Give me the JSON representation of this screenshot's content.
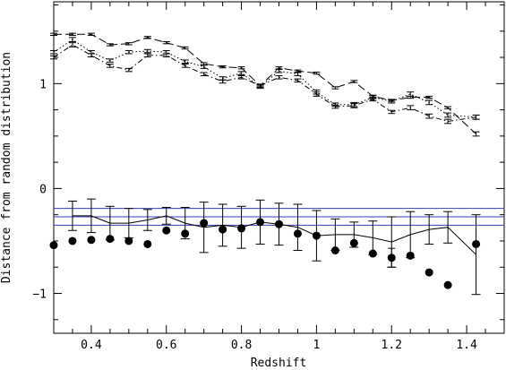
{
  "chart_data": {
    "type": "line",
    "title": "",
    "xlabel": "Redshift",
    "ylabel": "Distance from random distribution",
    "xlim": [
      0.3,
      1.5
    ],
    "ylim": [
      -1.38,
      1.78
    ],
    "xticks": [
      0.4,
      0.6,
      0.8,
      1,
      1.2,
      1.4
    ],
    "xtick_labels": [
      "0.4",
      "0.6",
      "0.8",
      "1",
      "1.2",
      "1.4"
    ],
    "yticks": [
      -1,
      0,
      1
    ],
    "ytick_labels": [
      "−1",
      "0",
      "1"
    ],
    "grid": false,
    "legend": "none",
    "horizontal_lines": {
      "color": "#3b3bb8",
      "values": [
        -0.19,
        -0.27,
        -0.35
      ]
    },
    "series": [
      {
        "style": "dashed",
        "x": [
          0.3,
          0.35,
          0.4,
          0.45,
          0.5,
          0.55,
          0.6,
          0.65,
          0.7,
          0.75,
          0.8,
          0.85,
          0.9,
          0.95,
          1.0,
          1.05,
          1.1,
          1.15,
          1.2,
          1.25,
          1.3,
          1.35,
          1.425
        ],
        "y": [
          1.47,
          1.47,
          1.47,
          1.37,
          1.38,
          1.44,
          1.39,
          1.34,
          1.19,
          1.16,
          1.15,
          0.98,
          1.15,
          1.12,
          1.1,
          0.96,
          1.02,
          0.88,
          0.84,
          0.87,
          0.87,
          0.77,
          0.52
        ],
        "err": [
          0.01,
          0.01,
          0.01,
          0.01,
          0.01,
          0.01,
          0.01,
          0.01,
          0.01,
          0.01,
          0.01,
          0.01,
          0.01,
          0.01,
          0.01,
          0.01,
          0.01,
          0.01,
          0.01,
          0.01,
          0.01,
          0.01,
          0.02
        ]
      },
      {
        "style": "dotted",
        "x": [
          0.3,
          0.35,
          0.4,
          0.45,
          0.5,
          0.55,
          0.6,
          0.65,
          0.7,
          0.75,
          0.8,
          0.85,
          0.9,
          0.95,
          1.0,
          1.05,
          1.1,
          1.15,
          1.2,
          1.25,
          1.3,
          1.35,
          1.425
        ],
        "y": [
          1.3,
          1.42,
          1.3,
          1.22,
          1.3,
          1.31,
          1.3,
          1.21,
          1.16,
          1.05,
          1.1,
          0.97,
          1.12,
          1.09,
          0.92,
          0.8,
          0.8,
          0.87,
          0.83,
          0.9,
          0.82,
          0.7,
          0.68
        ],
        "err": [
          0.015,
          0.02,
          0.015,
          0.015,
          0.015,
          0.015,
          0.015,
          0.015,
          0.015,
          0.015,
          0.015,
          0.015,
          0.015,
          0.015,
          0.02,
          0.015,
          0.02,
          0.015,
          0.015,
          0.02,
          0.02,
          0.02,
          0.02
        ]
      },
      {
        "style": "dash-dot",
        "x": [
          0.3,
          0.35,
          0.4,
          0.45,
          0.5,
          0.55,
          0.6,
          0.65,
          0.7,
          0.75,
          0.8,
          0.85,
          0.9,
          0.95,
          1.0,
          1.05,
          1.1,
          1.15,
          1.2,
          1.25,
          1.3,
          1.35,
          1.425
        ],
        "y": [
          1.25,
          1.37,
          1.27,
          1.17,
          1.13,
          1.27,
          1.27,
          1.17,
          1.09,
          1.02,
          1.06,
          0.98,
          1.06,
          1.03,
          0.9,
          0.78,
          0.79,
          0.85,
          0.73,
          0.77,
          0.69,
          0.64,
          0.68
        ],
        "err": [
          0.015,
          0.02,
          0.015,
          0.015,
          0.015,
          0.015,
          0.015,
          0.015,
          0.015,
          0.015,
          0.015,
          0.015,
          0.015,
          0.015,
          0.02,
          0.015,
          0.02,
          0.015,
          0.015,
          0.02,
          0.02,
          0.02,
          0.02
        ]
      },
      {
        "style": "solid",
        "x": [
          0.35,
          0.4,
          0.45,
          0.5,
          0.55,
          0.6,
          0.65,
          0.7,
          0.75,
          0.8,
          0.85,
          0.9,
          0.95,
          1.0,
          1.05,
          1.1,
          1.15,
          1.2,
          1.25,
          1.3,
          1.35,
          1.425
        ],
        "y": [
          -0.26,
          -0.26,
          -0.33,
          -0.33,
          -0.3,
          -0.26,
          -0.33,
          -0.37,
          -0.35,
          -0.37,
          -0.32,
          -0.34,
          -0.37,
          -0.45,
          -0.44,
          -0.44,
          -0.47,
          -0.51,
          -0.44,
          -0.39,
          -0.37,
          -0.63
        ],
        "err": [
          0.14,
          0.16,
          0.16,
          0.14,
          0.1,
          0.08,
          0.15,
          0.24,
          0.2,
          0.2,
          0.21,
          0.2,
          0.22,
          0.24,
          0.15,
          0.12,
          0.16,
          0.24,
          0.22,
          0.14,
          0.15,
          0.38
        ]
      },
      {
        "style": "markers",
        "x": [
          0.3,
          0.35,
          0.4,
          0.45,
          0.5,
          0.55,
          0.6,
          0.65,
          0.7,
          0.75,
          0.8,
          0.85,
          0.9,
          0.95,
          1.0,
          1.05,
          1.1,
          1.15,
          1.2,
          1.25,
          1.3,
          1.35,
          1.425
        ],
        "y": [
          -0.54,
          -0.5,
          -0.49,
          -0.48,
          -0.5,
          -0.53,
          -0.4,
          -0.43,
          -0.33,
          -0.39,
          -0.38,
          -0.32,
          -0.34,
          -0.43,
          -0.45,
          -0.59,
          -0.52,
          -0.62,
          -0.66,
          -0.64,
          -0.8,
          -0.92,
          -0.53
        ],
        "err": [
          0,
          0,
          0,
          0,
          0,
          0,
          0,
          0,
          0,
          0,
          0,
          0,
          0,
          0,
          0,
          0,
          0,
          0,
          0.09,
          0,
          0,
          0,
          0
        ]
      }
    ]
  }
}
